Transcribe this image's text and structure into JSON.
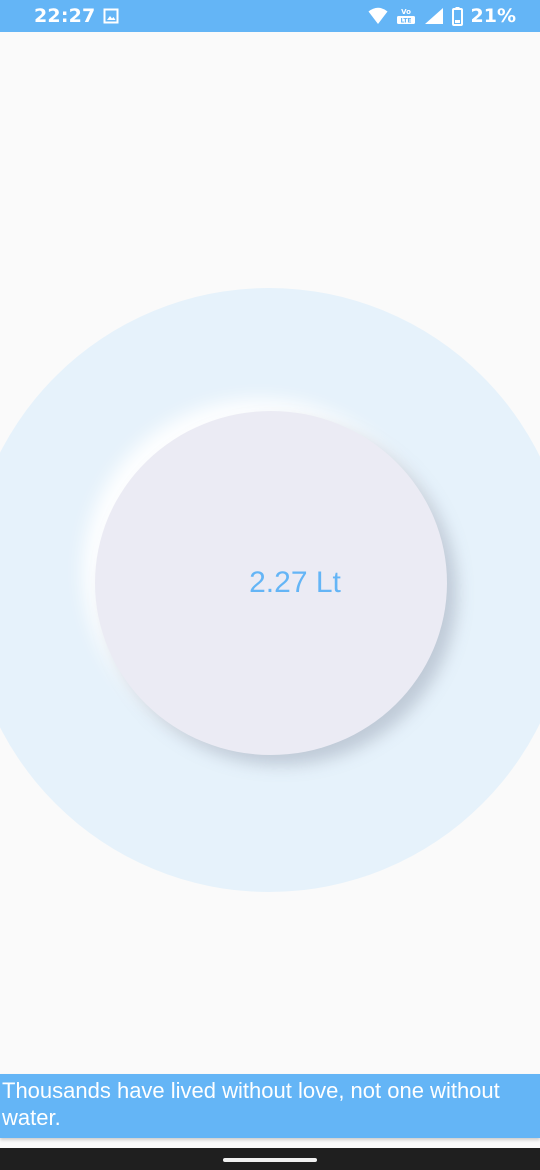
{
  "status_bar": {
    "time": "22:27",
    "battery_percent": "21%",
    "icons": [
      "gallery-notification-icon",
      "wifi-icon",
      "volte-lte-icon",
      "cell-signal-icon",
      "battery-icon"
    ],
    "volte_label_top": "Vo",
    "volte_label_bottom": "LTE",
    "background_color": "#64b5f6"
  },
  "main": {
    "volume_label": "2.27 Lt",
    "accent_color": "#64b5f6",
    "ring_color": "#e6f2fb",
    "circle_color": "#ebebf4"
  },
  "quote": {
    "text": "Thousands have lived without love, not one without water."
  },
  "nav_bar": {
    "background_color": "#1f1f1f"
  }
}
